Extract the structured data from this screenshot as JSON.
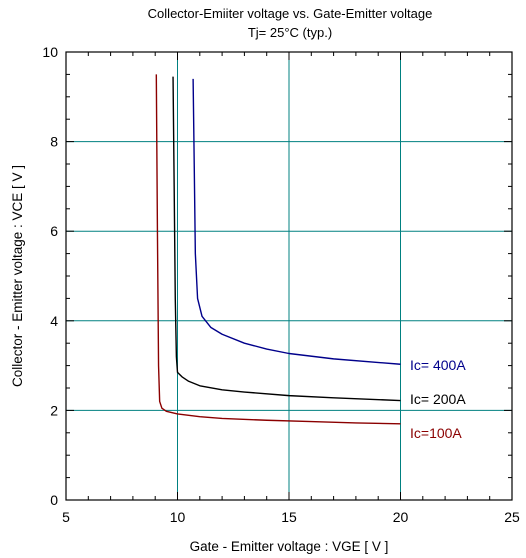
{
  "chart_data": {
    "type": "line",
    "title": "Collector-Emiiter voltage  vs. Gate-Emitter voltage",
    "subtitle": "Tj= 25°C  (typ.)",
    "xlabel": "Gate - Emitter voltage  :  VGE  [ V ]",
    "ylabel": "Collector - Emitter voltage  :  VCE  [ V ]",
    "xlim": [
      5,
      25
    ],
    "ylim": [
      0,
      10
    ],
    "xticks": [
      "5",
      "10",
      "15",
      "20",
      "25"
    ],
    "yticks": [
      "0",
      "2",
      "4",
      "6",
      "8",
      "10"
    ],
    "grid": true,
    "grid_color": "#008080",
    "series": [
      {
        "name": "Ic=100A",
        "color": "#8b0000",
        "points": [
          [
            9.05,
            9.5
          ],
          [
            9.1,
            6.0
          ],
          [
            9.15,
            3.0
          ],
          [
            9.2,
            2.2
          ],
          [
            9.3,
            2.05
          ],
          [
            9.5,
            1.98
          ],
          [
            10,
            1.92
          ],
          [
            11,
            1.86
          ],
          [
            12,
            1.82
          ],
          [
            14,
            1.78
          ],
          [
            16,
            1.75
          ],
          [
            18,
            1.72
          ],
          [
            20,
            1.7
          ]
        ]
      },
      {
        "name": "Ic= 200A",
        "color": "#000000",
        "points": [
          [
            9.8,
            9.45
          ],
          [
            9.85,
            7.0
          ],
          [
            9.9,
            4.5
          ],
          [
            9.95,
            3.2
          ],
          [
            10,
            2.85
          ],
          [
            10.2,
            2.75
          ],
          [
            10.5,
            2.65
          ],
          [
            11,
            2.55
          ],
          [
            12,
            2.46
          ],
          [
            13,
            2.41
          ],
          [
            15,
            2.33
          ],
          [
            17,
            2.28
          ],
          [
            20,
            2.22
          ]
        ]
      },
      {
        "name": "Ic= 400A",
        "color": "#00008b",
        "points": [
          [
            10.7,
            9.4
          ],
          [
            10.75,
            7.5
          ],
          [
            10.8,
            5.5
          ],
          [
            10.9,
            4.5
          ],
          [
            11.1,
            4.1
          ],
          [
            11.5,
            3.85
          ],
          [
            12,
            3.7
          ],
          [
            13,
            3.5
          ],
          [
            14,
            3.37
          ],
          [
            15,
            3.27
          ],
          [
            17,
            3.15
          ],
          [
            20,
            3.03
          ]
        ]
      }
    ]
  }
}
